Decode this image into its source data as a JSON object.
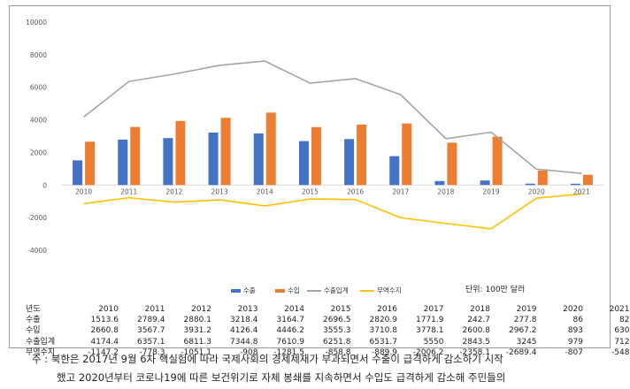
{
  "chart_data": {
    "type": "bar",
    "categories": [
      "2010",
      "2011",
      "2012",
      "2013",
      "2014",
      "2015",
      "2016",
      "2017",
      "2018",
      "2019",
      "2020",
      "2021"
    ],
    "series": [
      {
        "name": "수출",
        "kind": "bar",
        "color": "#4472C4",
        "values": [
          1513.6,
          2789.4,
          2880.1,
          3218.4,
          3164.7,
          2696.5,
          2820.9,
          1771.9,
          242.7,
          277.8,
          86,
          82
        ]
      },
      {
        "name": "수입",
        "kind": "bar",
        "color": "#ED7D31",
        "values": [
          2660.8,
          3567.7,
          3931.2,
          4126.4,
          4446.2,
          3555.3,
          3710.8,
          3778.1,
          2600.8,
          2967.2,
          893,
          630
        ]
      },
      {
        "name": "수출입계",
        "kind": "line",
        "color": "#A5A5A5",
        "values": [
          4174.4,
          6357.1,
          6811.3,
          7344.8,
          7610.9,
          6251.8,
          6531.7,
          5550,
          2843.5,
          3245,
          979,
          712
        ]
      },
      {
        "name": "무역수지",
        "kind": "line",
        "color": "#FFC000",
        "values": [
          -1147.2,
          -778.3,
          -1051.1,
          -908,
          -1281.5,
          -858.8,
          -889.9,
          -2006.2,
          -2358.1,
          -2689.4,
          -807,
          -548
        ]
      }
    ],
    "yticks": [
      "10000",
      "8000",
      "6000",
      "4000",
      "2000",
      "0",
      "-2000",
      "-4000"
    ],
    "ylim": [
      -4000,
      10000
    ],
    "grid": false,
    "legend_position": "bottom",
    "unit_note": "단위: 100만 달러"
  },
  "table": {
    "header_label": "년도",
    "years": [
      "2010",
      "2011",
      "2012",
      "2013",
      "2014",
      "2015",
      "2016",
      "2017",
      "2018",
      "2019",
      "2020",
      "2021"
    ],
    "rows": [
      {
        "label": "수출",
        "values": [
          "1513.6",
          "2789.4",
          "2880.1",
          "3218.4",
          "3164.7",
          "2696.5",
          "2820.9",
          "1771.9",
          "242.7",
          "277.8",
          "86",
          "82"
        ]
      },
      {
        "label": "수입",
        "values": [
          "2660.8",
          "3567.7",
          "3931.2",
          "4126.4",
          "4446.2",
          "3555.3",
          "3710.8",
          "3778.1",
          "2600.8",
          "2967.2",
          "893",
          "630"
        ]
      },
      {
        "label": "수출입계",
        "values": [
          "4174.4",
          "6357.1",
          "6811.3",
          "7344.8",
          "7610.9",
          "6251.8",
          "6531.7",
          "5550",
          "2843.5",
          "3245",
          "979",
          "712"
        ]
      },
      {
        "label": "무역수지",
        "values": [
          "-1147.2",
          "-778.3",
          "-1051.1",
          "-908",
          "-1281.5",
          "-858.8",
          "-889.9",
          "-2006.2",
          "-2358.1",
          "-2689.4",
          "-807",
          "-548"
        ]
      }
    ]
  },
  "note": {
    "line1": "주 : 북한은 2017년 9월 6차 핵실험에 따라 국제사회의 경제제재가 부과되면서 수출이 급격하게 감소하기 시작",
    "line2": "했고 2020년부터 코로나19에 따른 보건위기로 자체 봉쇄를 지속하면서 수입도 급격하게 감소해 주민들의"
  }
}
